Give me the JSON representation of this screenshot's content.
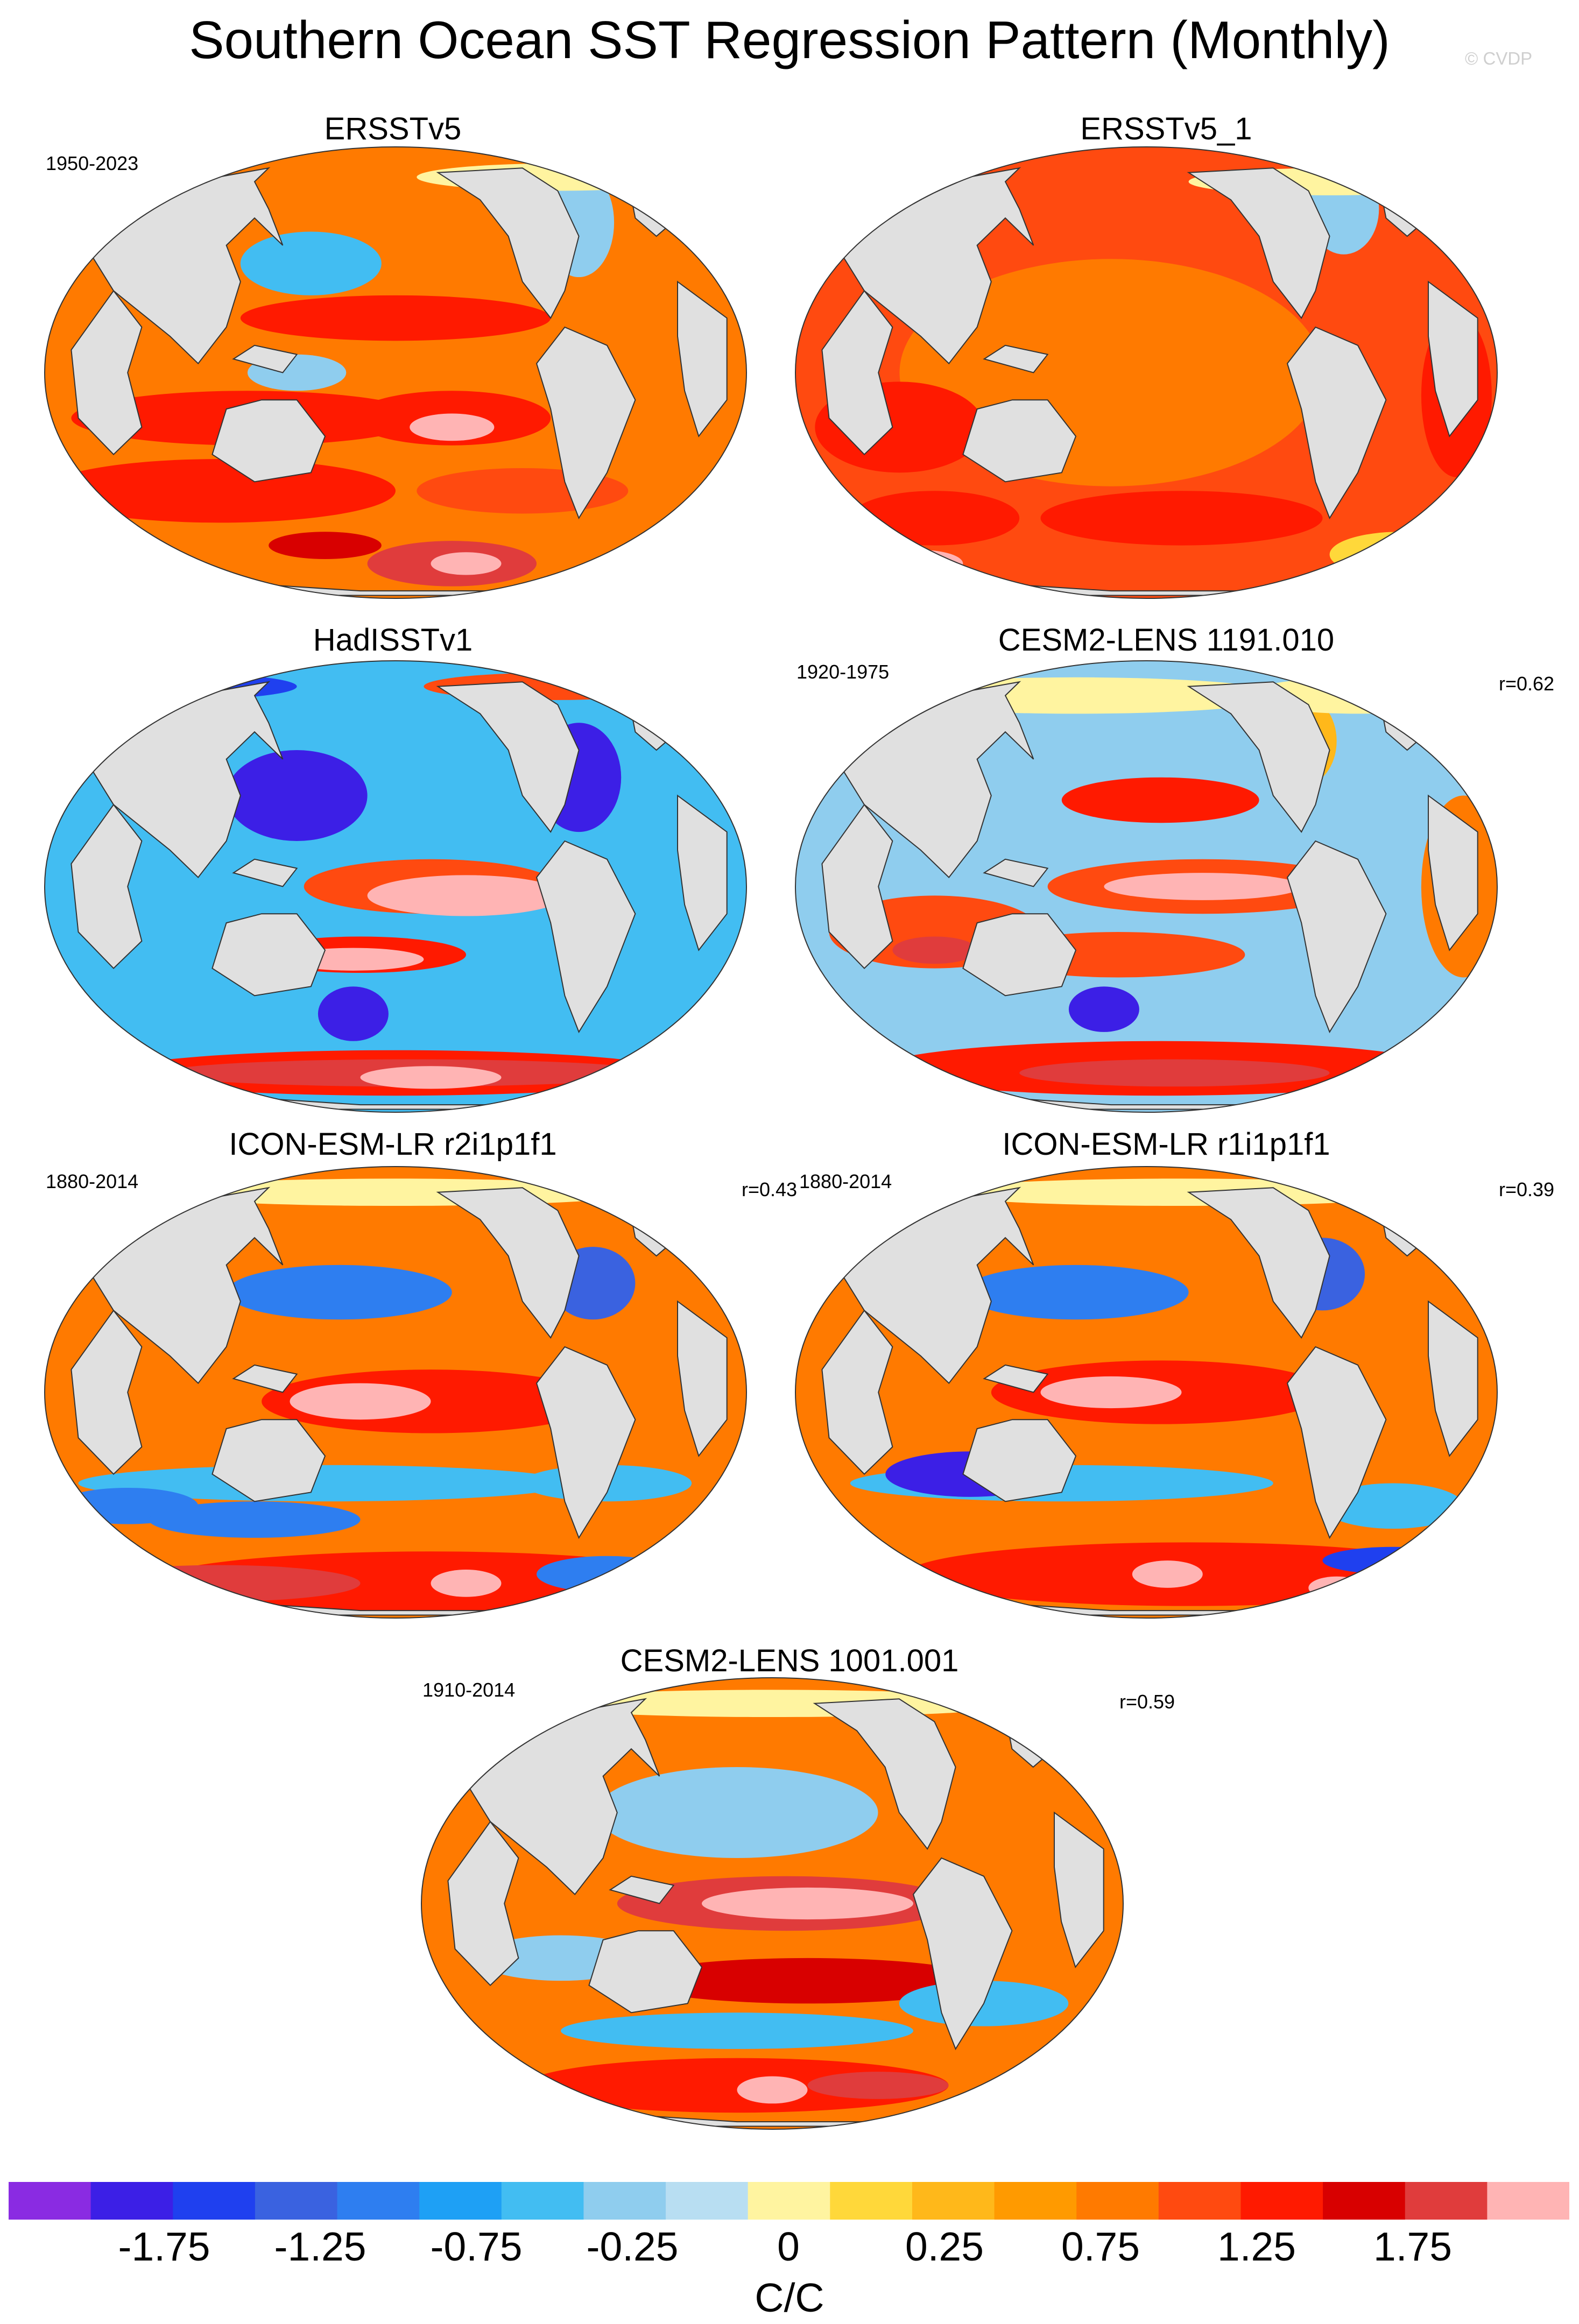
{
  "figure": {
    "title": "Southern Ocean SST Regression Pattern (Monthly)",
    "copyright": "© CVDP"
  },
  "panels": [
    {
      "title": "ERSSTv5",
      "period": "1950-2023",
      "corr": ""
    },
    {
      "title": "ERSSTv5_1",
      "period": "",
      "corr": ""
    },
    {
      "title": "HadISSTv1",
      "period": "",
      "corr": ""
    },
    {
      "title": "CESM2-LENS 1191.010",
      "period": "1920-1975",
      "corr": "r=0.62"
    },
    {
      "title": "ICON-ESM-LR r2i1p1f1",
      "period": "1880-2014",
      "corr": "r=0.43"
    },
    {
      "title": "ICON-ESM-LR r1i1p1f1",
      "period": "1880-2014",
      "corr": "r=0.39"
    },
    {
      "title": "CESM2-LENS 1001.001",
      "period": "1910-2014",
      "corr": "r=0.59"
    }
  ],
  "colorbar": {
    "unit": "C/C",
    "tick_labels": [
      "-1.75",
      "-1.25",
      "-0.75",
      "-0.25",
      "0",
      "0.25",
      "0.75",
      "1.25",
      "1.75"
    ],
    "colors": [
      "#8a2be2",
      "#3c1fe6",
      "#1f40ef",
      "#3a62e0",
      "#2e7ef0",
      "#1ea0f5",
      "#42bdf2",
      "#8fcdee",
      "#b8def2",
      "#fff4a0",
      "#ffd83a",
      "#ffb81a",
      "#ff9a00",
      "#ff7a00",
      "#ff4a10",
      "#ff1a00",
      "#d80000",
      "#e03c3c",
      "#ffb4b4"
    ]
  },
  "colors": {
    "land": "#e0e0e0",
    "coast": "#333333"
  }
}
